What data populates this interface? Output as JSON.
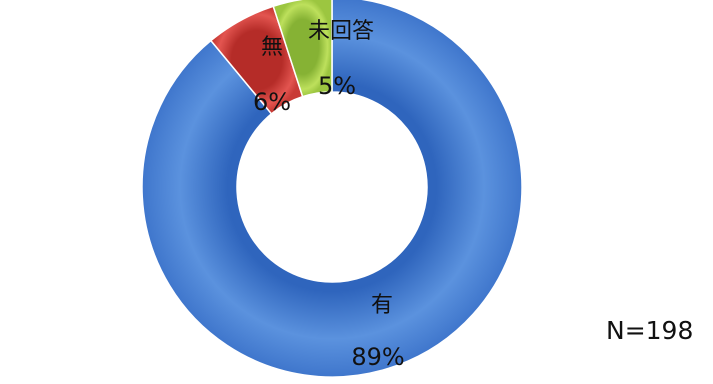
{
  "chart_data": {
    "type": "pie",
    "subtype": "donut",
    "slices": [
      {
        "label": "有",
        "percent_label": "89%",
        "value": 89,
        "color": "#4a7fd1"
      },
      {
        "label": "無",
        "percent_label": "6%",
        "value": 6,
        "color": "#d63d3a"
      },
      {
        "label": "未回答",
        "percent_label": "5%",
        "value": 5,
        "color": "#a6cc45"
      }
    ],
    "note": "N=198"
  }
}
